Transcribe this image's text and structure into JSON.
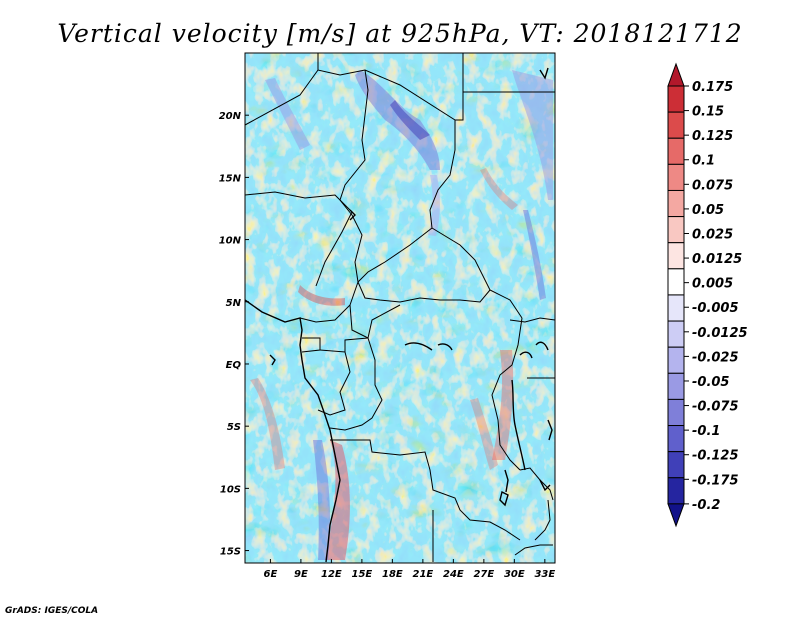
{
  "title": "Vertical velocity [m/s] at 925hPa, VT: 2018121712",
  "credit": "GrADS: IGES/COLA",
  "axes": {
    "lat_ticks": [
      "20N",
      "15N",
      "10N",
      "5N",
      "EQ",
      "5S",
      "10S",
      "15S"
    ],
    "lon_ticks": [
      "6E",
      "9E",
      "12E",
      "15E",
      "18E",
      "21E",
      "24E",
      "27E",
      "30E",
      "33E"
    ],
    "lon_range": [
      3.5,
      34
    ],
    "lat_range": [
      -16,
      25
    ]
  },
  "colorbar": {
    "labels": [
      "0.175",
      "0.15",
      "0.125",
      "0.1",
      "0.075",
      "0.05",
      "0.025",
      "0.0125",
      "0.005",
      "-0.005",
      "-0.0125",
      "-0.025",
      "-0.05",
      "-0.075",
      "-0.1",
      "-0.125",
      "-0.175",
      "-0.2"
    ],
    "colors": [
      "#b2182b",
      "#cc2e36",
      "#dc4b4b",
      "#e66a68",
      "#ee8985",
      "#f4a8a2",
      "#f9c8c2",
      "#fde5e2",
      "#ffffff",
      "#e6e6fa",
      "#cdcdf5",
      "#b4b4ee",
      "#9a9ae4",
      "#7f7fd9",
      "#6060cc",
      "#4040b8",
      "#2525a0",
      "#12128a"
    ]
  }
}
